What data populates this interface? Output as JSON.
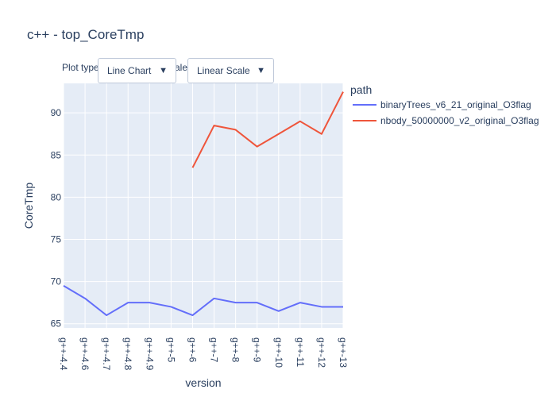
{
  "title": "c++ - top_CoreTmp",
  "controls": {
    "plot_type_label": "Plot type:",
    "plot_type_value": "Line Chart",
    "scale_label": "Scale:",
    "scale_value": "Linear Scale"
  },
  "chart_data": {
    "type": "line",
    "title": "c++ - top_CoreTmp",
    "xlabel": "version",
    "ylabel": "CoreTmp",
    "categories": [
      "g++-4.4",
      "g++-4.6",
      "g++-4.7",
      "g++-4.8",
      "g++-4.9",
      "g++-5",
      "g++-6",
      "g++-7",
      "g++-8",
      "g++-9",
      "g++-10",
      "g++-11",
      "g++-12",
      "g++-13"
    ],
    "ylim": [
      64.5,
      93.5
    ],
    "yticks": [
      65,
      70,
      75,
      80,
      85,
      90
    ],
    "legend_title": "path",
    "legend_position": "top-right",
    "grid": true,
    "series": [
      {
        "name": "binaryTrees_v6_21_original_O3flag",
        "color": "#636efa",
        "values": [
          69.5,
          68,
          66,
          67.5,
          67.5,
          67,
          66,
          68,
          67.5,
          67.5,
          66.5,
          67.5,
          67,
          67
        ]
      },
      {
        "name": "nbody_50000000_v2_original_O3flag",
        "color": "#ef553b",
        "values": [
          null,
          null,
          null,
          null,
          null,
          null,
          83.5,
          88.5,
          88,
          86,
          87.5,
          89,
          87.5,
          92.5
        ]
      }
    ]
  }
}
